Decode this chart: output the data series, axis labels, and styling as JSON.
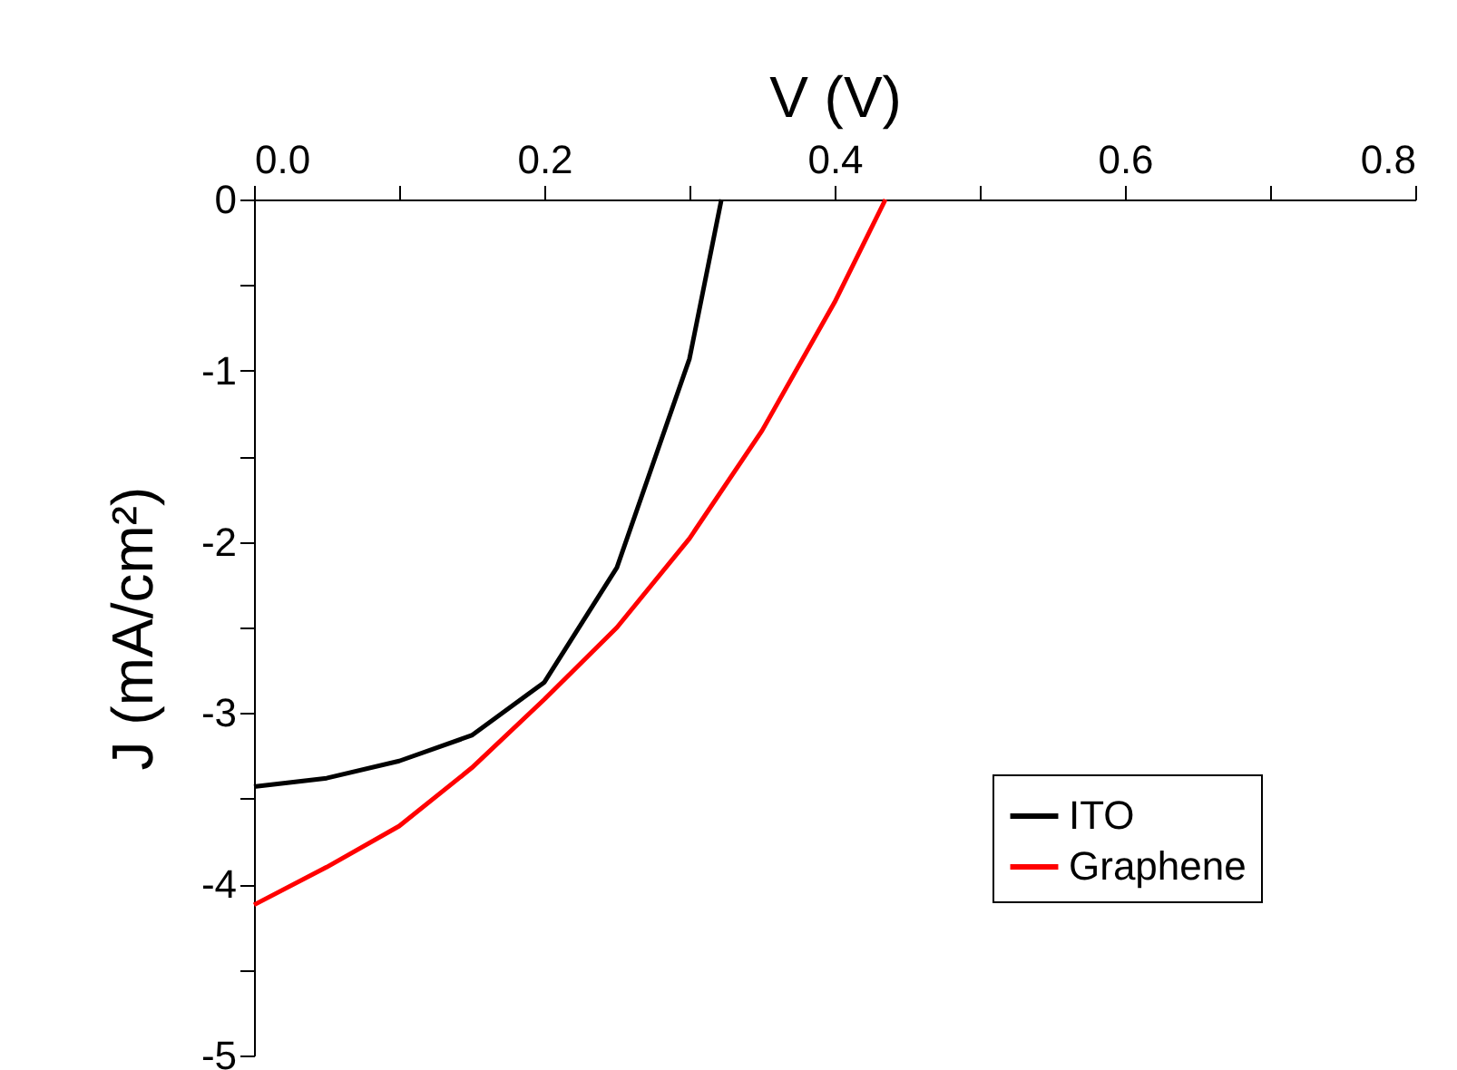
{
  "chart_data": {
    "type": "line",
    "xlabel": "V (V)",
    "ylabel": "J (mA/cm²)",
    "xlim": [
      0,
      0.8
    ],
    "ylim": [
      -5,
      0
    ],
    "xticks": [
      {
        "value": 0,
        "label": "0.0"
      },
      {
        "value": 0.1,
        "label": null
      },
      {
        "value": 0.2,
        "label": "0.2"
      },
      {
        "value": 0.3,
        "label": null
      },
      {
        "value": 0.4,
        "label": "0.4"
      },
      {
        "value": 0.5,
        "label": null
      },
      {
        "value": 0.6,
        "label": "0.6"
      },
      {
        "value": 0.7,
        "label": null
      },
      {
        "value": 0.8,
        "label": "0.8"
      }
    ],
    "yticks": [
      -5,
      {
        "value": -4.5,
        "label": null
      },
      -4,
      {
        "value": -3.5,
        "label": null
      },
      -3,
      {
        "value": -2.5,
        "label": null
      },
      -2,
      {
        "value": -1.5,
        "label": null
      },
      -1,
      {
        "value": -0.5,
        "label": null
      },
      0
    ],
    "grid": false,
    "legend": "bottom right",
    "marker": "none",
    "line_style": "solid",
    "series": [
      {
        "name": "ITO",
        "color": "#000000",
        "x": [
          0,
          0.05,
          0.1,
          0.15,
          0.2,
          0.25,
          0.3,
          0.322
        ],
        "values": [
          -3.43,
          -3.38,
          -3.28,
          -3.13,
          -2.82,
          -2.15,
          -0.93,
          0
        ]
      },
      {
        "name": "Graphene",
        "color": "#ff0000",
        "x": [
          0,
          0.05,
          0.1,
          0.15,
          0.2,
          0.25,
          0.3,
          0.35,
          0.4,
          0.435
        ],
        "values": [
          -4.12,
          -3.9,
          -3.66,
          -3.32,
          -2.92,
          -2.5,
          -1.98,
          -1.35,
          -0.6,
          0
        ]
      }
    ]
  }
}
